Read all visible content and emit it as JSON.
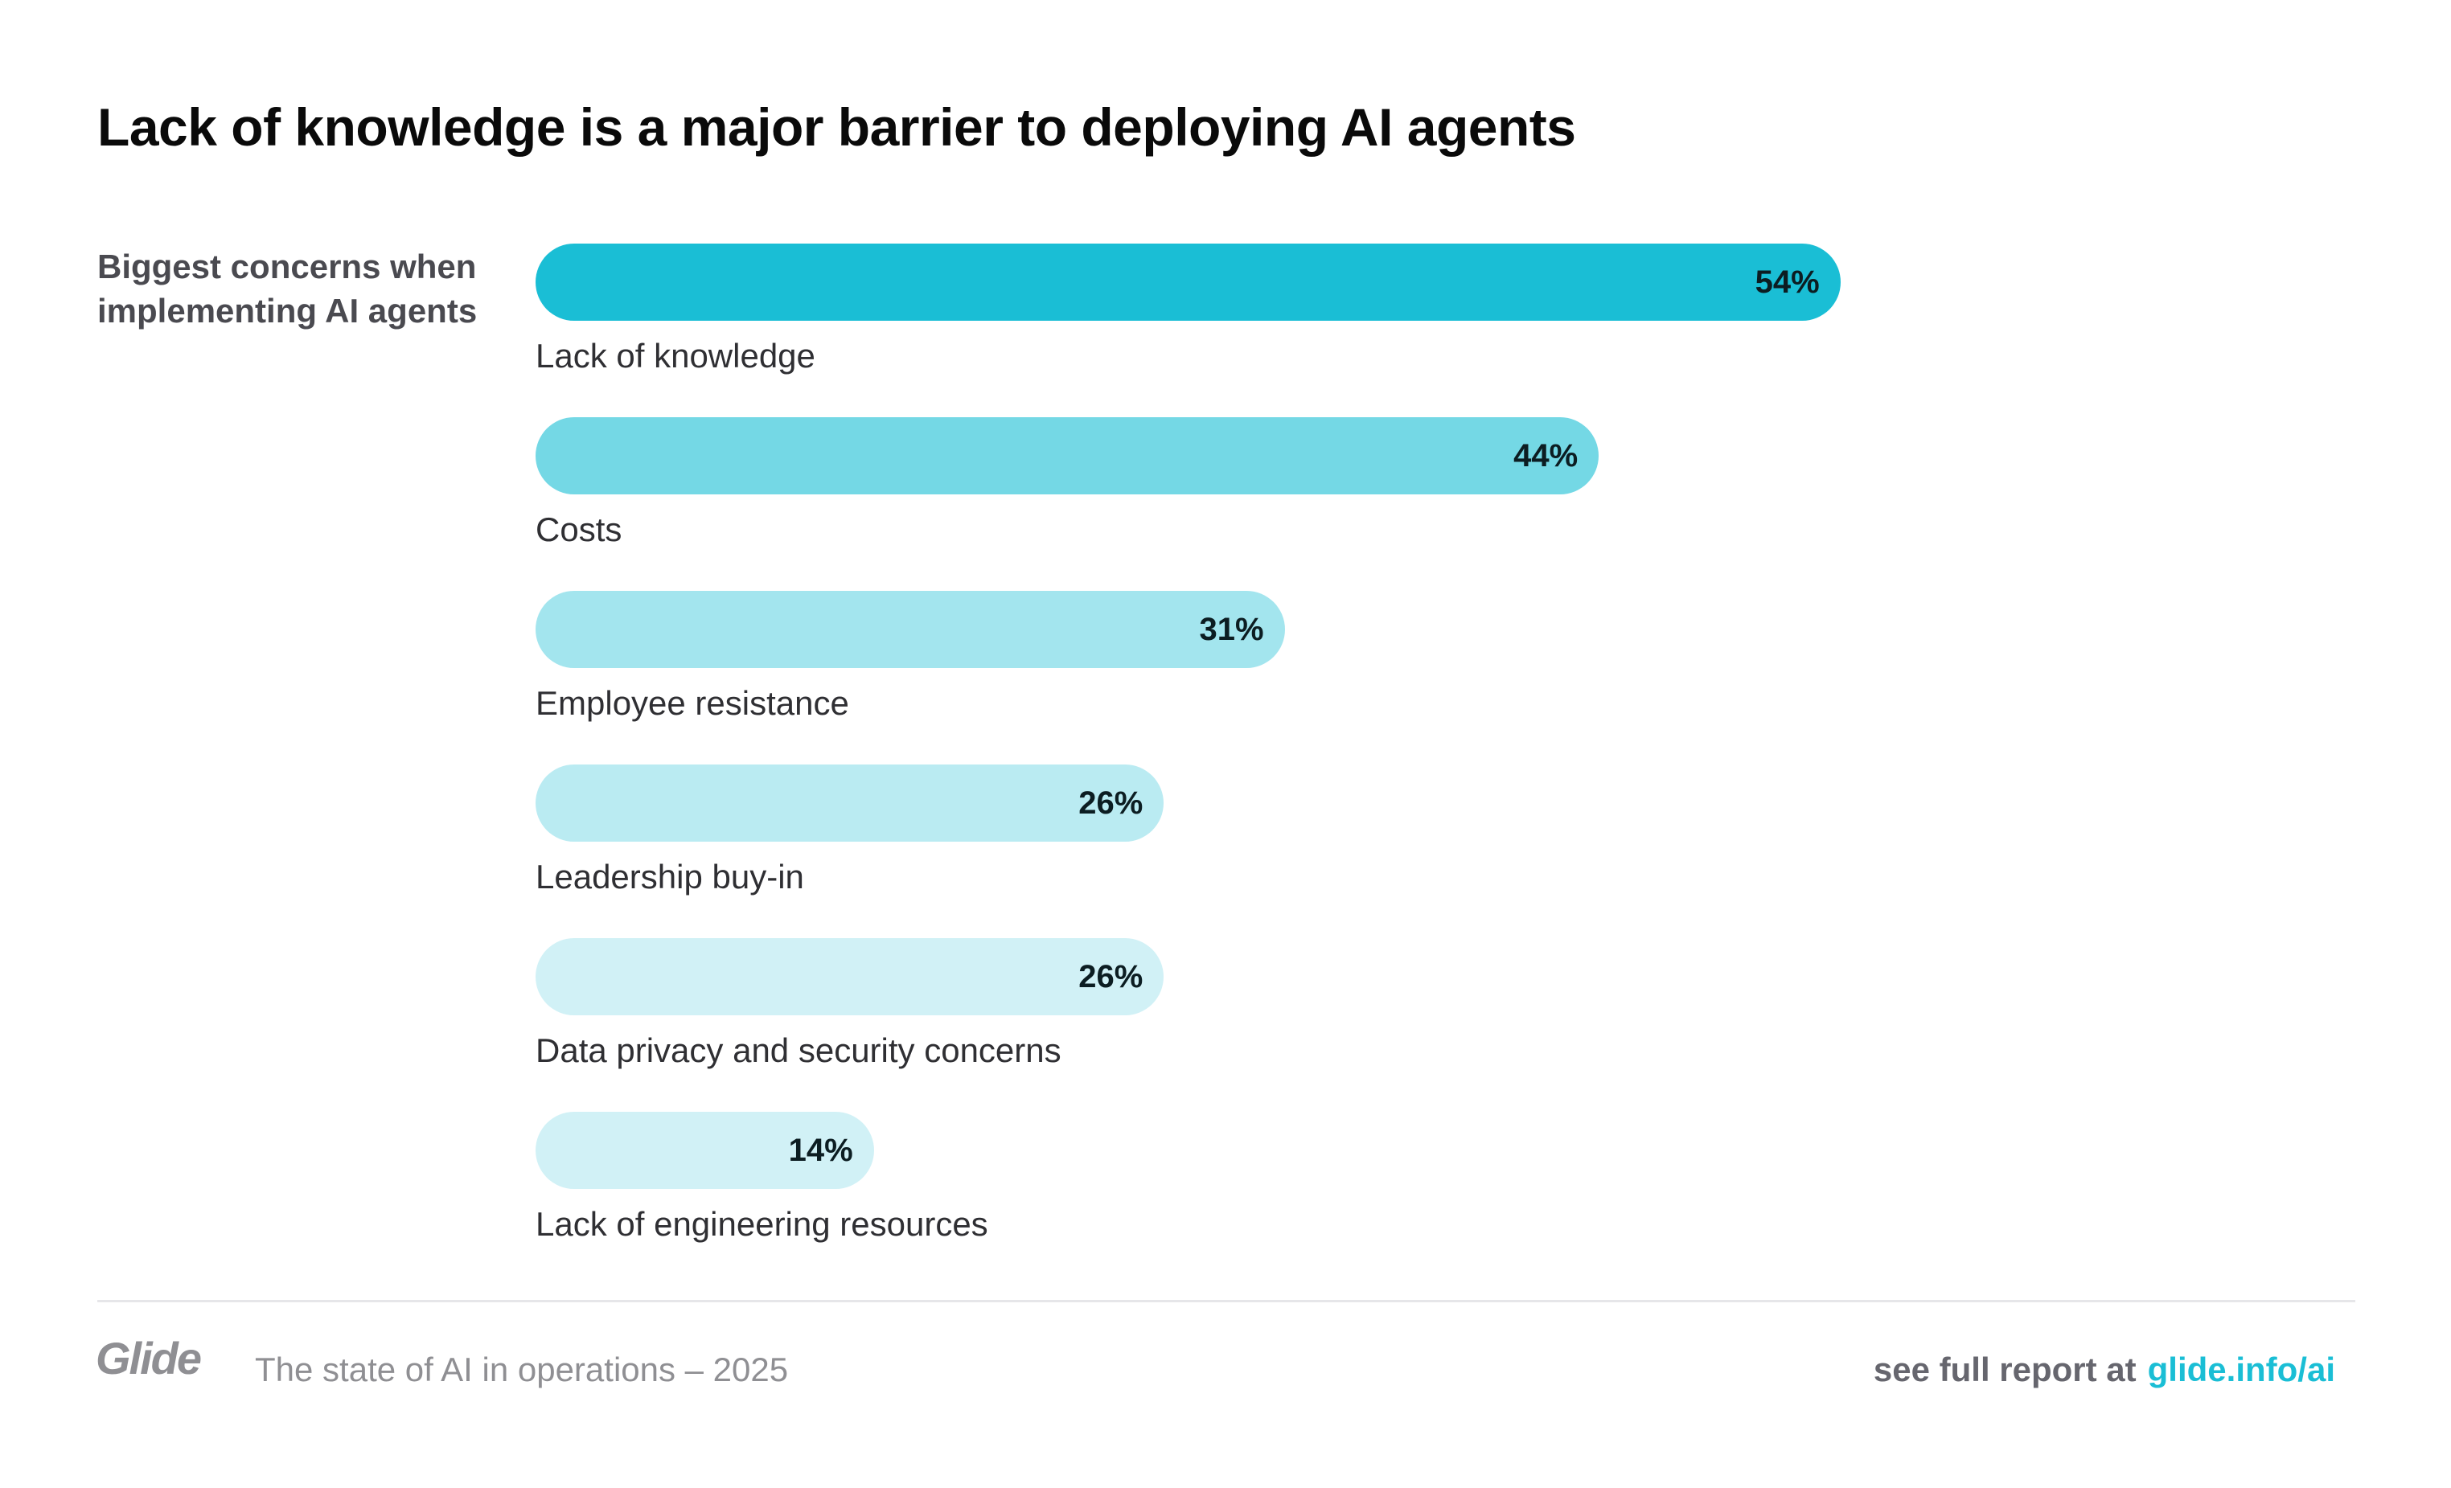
{
  "header": {
    "title": "Lack of knowledge is a major barrier to deploying AI agents"
  },
  "chart_data": {
    "type": "bar",
    "orientation": "horizontal",
    "title": "Lack of knowledge is a major barrier to deploying AI agents",
    "subtitle": "Biggest concerns when implementing AI agents",
    "xlabel": "",
    "ylabel": "",
    "unit": "%",
    "grid": false,
    "legend": "none",
    "xlim": [
      0,
      100
    ],
    "categories": [
      "Lack of knowledge",
      "Costs",
      "Employee resistance",
      "Leadership buy-in",
      "Data privacy and security concerns",
      "Lack of engineering resources"
    ],
    "values": [
      54,
      44,
      31,
      26,
      26,
      14
    ],
    "value_labels": [
      "54%",
      "44%",
      "31%",
      "26%",
      "26%",
      "14%"
    ],
    "colors": [
      "#1abed5",
      "#74d8e5",
      "#a3e5ee",
      "#baebf2",
      "#d1f1f6",
      "#d1f1f6"
    ]
  },
  "footer": {
    "logo": "Glide",
    "report_title": "The state of AI in operations – 2025",
    "cta_text": "see full report at",
    "link_text": "glide.info/ai"
  },
  "colors": {
    "accent": "#1abed5",
    "title": "#0a0a0a",
    "muted": "#8f8f93"
  }
}
